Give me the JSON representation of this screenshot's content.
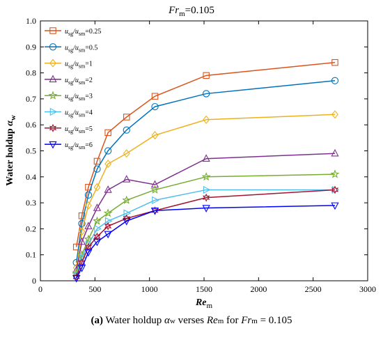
{
  "figure": {
    "top_title": "Fr",
    "top_title_sub": "m",
    "top_title_value": "=0.105",
    "caption": {
      "label": "(a)",
      "text": "Water holdup αw verses Rem for Frm = 0.105"
    }
  },
  "chart_data": {
    "type": "line",
    "title": "Fr m =0.105",
    "xlabel": "Re m",
    "ylabel": "Water holdup α w",
    "xlim": [
      0,
      3000
    ],
    "ylim": [
      0,
      1.0
    ],
    "xticks": [
      0,
      500,
      1000,
      1500,
      2000,
      2500,
      3000
    ],
    "yticks": [
      0,
      0.1,
      0.2,
      0.3,
      0.4,
      0.5,
      0.6,
      0.7,
      0.8,
      0.9,
      1.0
    ],
    "grid": false,
    "legend_position": "top-left",
    "x": [
      330,
      380,
      440,
      520,
      620,
      790,
      1050,
      1520,
      2700
    ],
    "series": [
      {
        "name": "usg/usm=0.25",
        "color": "#d9541c",
        "marker": "square",
        "values": [
          0.13,
          0.25,
          0.36,
          0.46,
          0.57,
          0.63,
          0.71,
          0.79,
          0.84
        ]
      },
      {
        "name": "usg/usm=0.5",
        "color": "#0072bd",
        "marker": "circle",
        "values": [
          0.07,
          0.22,
          0.33,
          0.43,
          0.5,
          0.58,
          0.67,
          0.72,
          0.77
        ]
      },
      {
        "name": "usg/usm=1",
        "color": "#edb120",
        "marker": "diamond",
        "values": [
          0.05,
          0.19,
          0.29,
          0.36,
          0.45,
          0.49,
          0.56,
          0.62,
          0.64
        ]
      },
      {
        "name": "usg/usm=2",
        "color": "#7e2f8e",
        "marker": "triangle-up",
        "values": [
          0.04,
          0.15,
          0.21,
          0.28,
          0.35,
          0.39,
          0.37,
          0.47,
          0.49
        ]
      },
      {
        "name": "usg/usm=3",
        "color": "#77ac30",
        "marker": "star5",
        "values": [
          0.03,
          0.1,
          0.16,
          0.23,
          0.26,
          0.31,
          0.35,
          0.4,
          0.41
        ]
      },
      {
        "name": "usg/usm=4",
        "color": "#4dbeee",
        "marker": "triangle-right",
        "values": [
          0.02,
          0.09,
          0.14,
          0.2,
          0.23,
          0.26,
          0.31,
          0.35,
          0.35
        ]
      },
      {
        "name": "usg/usm=5",
        "color": "#a2142f",
        "marker": "star6",
        "values": [
          0.015,
          0.07,
          0.13,
          0.17,
          0.21,
          0.24,
          0.27,
          0.32,
          0.35
        ]
      },
      {
        "name": "usg/usm=6",
        "color": "#0000ff",
        "marker": "triangle-down",
        "values": [
          0.01,
          0.05,
          0.11,
          0.15,
          0.18,
          0.23,
          0.27,
          0.28,
          0.29
        ]
      }
    ]
  }
}
